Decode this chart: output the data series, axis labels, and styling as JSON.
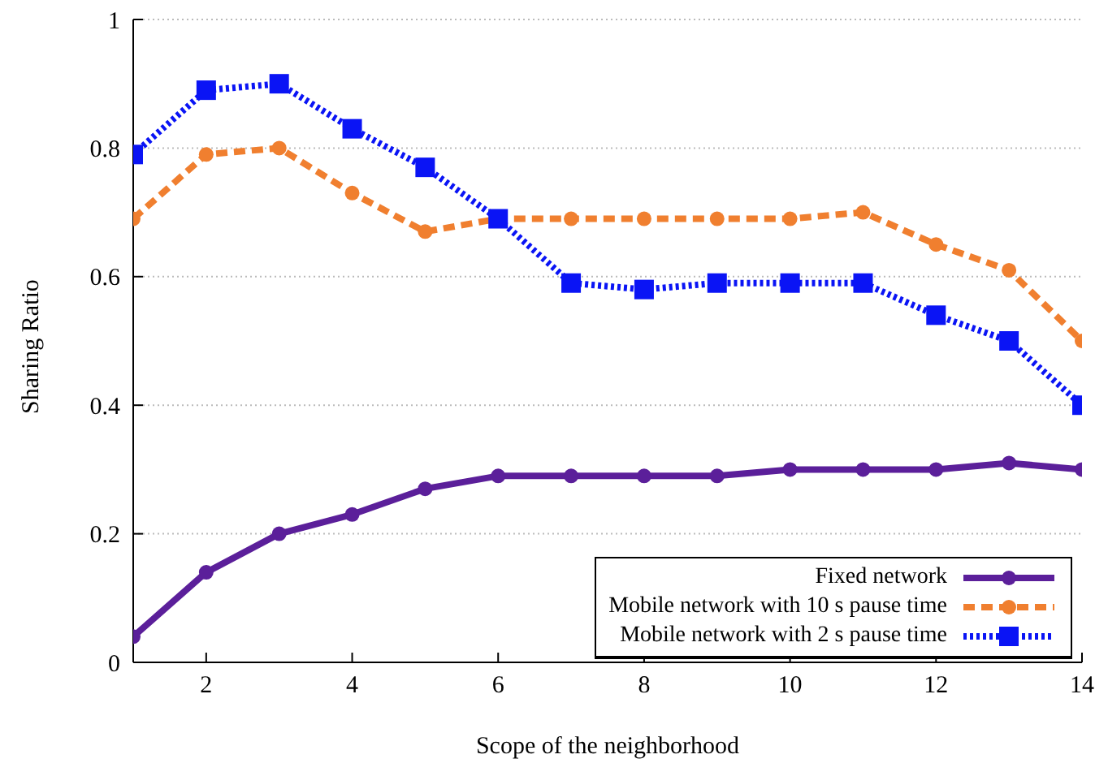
{
  "chart_data": {
    "type": "line",
    "xlabel": "Scope of the neighborhood",
    "ylabel": "Sharing Ratio",
    "x": [
      1,
      2,
      3,
      4,
      5,
      6,
      7,
      8,
      9,
      10,
      11,
      12,
      13,
      14
    ],
    "xlim": [
      1,
      14
    ],
    "xticks": [
      2,
      4,
      6,
      8,
      10,
      12,
      14
    ],
    "ylim": [
      0,
      1
    ],
    "yticks": [
      0,
      0.2,
      0.4,
      0.6,
      0.8,
      1
    ],
    "grid": "y",
    "legend": "bottom right",
    "series": [
      {
        "name": "Fixed network",
        "color": "#5b1f9a",
        "marker": "circle",
        "line_style": "solid",
        "values": [
          0.04,
          0.14,
          0.2,
          0.23,
          0.27,
          0.29,
          0.29,
          0.29,
          0.29,
          0.3,
          0.3,
          0.3,
          0.31,
          0.3
        ]
      },
      {
        "name": "Mobile network with 10 s pause time",
        "color": "#f07f2f",
        "marker": "circle",
        "line_style": "dashed",
        "values": [
          0.69,
          0.79,
          0.8,
          0.73,
          0.67,
          0.69,
          0.69,
          0.69,
          0.69,
          0.69,
          0.7,
          0.65,
          0.61,
          0.5
        ]
      },
      {
        "name": "Mobile network with 2 s pause time",
        "color": "#0a14f5",
        "marker": "square",
        "line_style": "dotted",
        "values": [
          0.79,
          0.89,
          0.9,
          0.83,
          0.77,
          0.69,
          0.59,
          0.58,
          0.59,
          0.59,
          0.59,
          0.54,
          0.5,
          0.4
        ]
      }
    ]
  }
}
